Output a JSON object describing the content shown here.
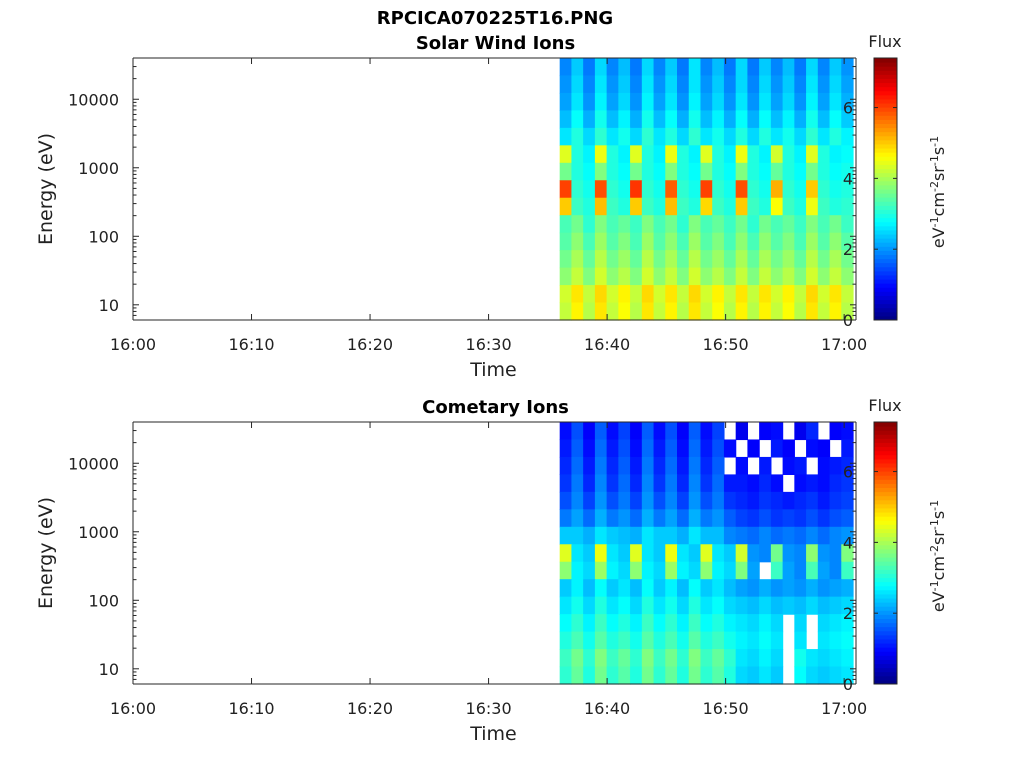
{
  "figure_title": "RPCICA070225T16.PNG",
  "chart_data": [
    {
      "type": "heatmap",
      "title": "Solar Wind Ions",
      "xlabel": "Time",
      "ylabel": "Energy (eV)",
      "x_ticks": [
        "16:00",
        "16:10",
        "16:20",
        "16:30",
        "16:40",
        "16:50",
        "17:00"
      ],
      "y_ticks": [
        "10",
        "100",
        "1000",
        "10000"
      ],
      "y_scale": "log",
      "ylim": [
        6,
        40000
      ],
      "xlim": [
        "16:00",
        "17:01"
      ],
      "data_start": "16:36",
      "colorbar_label": "Flux",
      "colorbar_unit": "eV-1cm-2sr-1s-1",
      "colorbar_ticks": [
        "0",
        "2",
        "4",
        "6"
      ],
      "clim": [
        0,
        7.4
      ],
      "colormap": "jet",
      "features": "Periodic vertical stripes (about 3.2 min period); peak flux near 400-500 eV reaching about 6; high flux about 4.5 at lowest energies",
      "time_labels": [
        "16:36",
        "16:37",
        "16:38",
        "16:39",
        "16:40",
        "16:41",
        "16:42",
        "16:43",
        "16:44",
        "16:45",
        "16:46",
        "16:47",
        "16:48",
        "16:49",
        "16:50",
        "16:51",
        "16:52",
        "16:53",
        "16:54",
        "16:55",
        "16:56",
        "16:57",
        "16:58",
        "16:59",
        "17:00"
      ],
      "energy_rows": [
        "30000",
        "20000",
        "10000",
        "5000",
        "2000",
        "1000",
        "600",
        "450",
        "350",
        "200",
        "100",
        "50",
        "25",
        "12",
        "8"
      ],
      "z": [
        [
          1.9,
          2.4,
          1.8,
          2.5,
          1.9,
          2.3,
          1.8,
          2.5,
          1.9,
          2.4,
          1.8,
          2.6,
          1.9,
          2.3,
          1.8,
          2.5,
          1.8,
          2.4,
          1.9,
          2.3,
          1.8,
          2.5,
          1.9,
          2.4,
          2.0
        ],
        [
          2.0,
          2.5,
          1.9,
          2.6,
          2.0,
          2.4,
          1.9,
          2.6,
          2.0,
          2.5,
          1.9,
          2.6,
          2.0,
          2.4,
          1.9,
          2.5,
          1.9,
          2.5,
          2.0,
          2.4,
          1.9,
          2.6,
          2.0,
          2.5,
          2.1
        ],
        [
          2.1,
          2.6,
          2.0,
          2.7,
          2.1,
          2.5,
          2.0,
          2.7,
          2.1,
          2.6,
          2.0,
          2.7,
          2.1,
          2.5,
          2.0,
          2.6,
          2.0,
          2.6,
          2.1,
          2.5,
          2.0,
          2.7,
          2.1,
          2.6,
          2.2
        ],
        [
          2.3,
          2.8,
          2.2,
          2.9,
          2.3,
          2.7,
          2.2,
          2.9,
          2.3,
          2.8,
          2.2,
          2.9,
          2.3,
          2.7,
          2.2,
          2.8,
          2.2,
          2.8,
          2.3,
          2.7,
          2.2,
          2.9,
          2.3,
          2.8,
          2.4
        ],
        [
          2.6,
          3.0,
          2.5,
          3.1,
          2.6,
          2.9,
          2.5,
          3.1,
          2.6,
          3.0,
          2.5,
          3.1,
          2.6,
          2.9,
          2.5,
          3.0,
          2.5,
          3.0,
          2.6,
          2.9,
          2.5,
          3.1,
          2.6,
          3.0,
          2.7
        ],
        [
          4.4,
          3.0,
          2.7,
          4.5,
          3.0,
          2.7,
          4.4,
          3.0,
          2.7,
          4.5,
          3.0,
          2.7,
          4.4,
          3.0,
          2.7,
          4.5,
          3.0,
          2.7,
          4.3,
          3.0,
          2.7,
          4.4,
          3.0,
          2.7,
          2.8
        ],
        [
          3.6,
          3.0,
          2.8,
          3.7,
          3.0,
          2.8,
          3.6,
          3.0,
          2.8,
          3.7,
          3.0,
          2.8,
          3.6,
          3.0,
          2.8,
          3.7,
          3.0,
          2.8,
          3.5,
          3.0,
          2.8,
          3.6,
          3.0,
          2.8,
          2.9
        ],
        [
          6.0,
          3.1,
          2.9,
          5.9,
          3.1,
          2.9,
          6.1,
          3.1,
          2.9,
          5.8,
          3.1,
          2.9,
          6.0,
          3.1,
          2.9,
          5.9,
          3.1,
          2.9,
          5.2,
          3.1,
          2.9,
          5.0,
          3.1,
          2.9,
          3.0
        ],
        [
          5.0,
          3.2,
          3.0,
          5.1,
          3.2,
          3.0,
          5.0,
          3.2,
          3.0,
          5.1,
          3.2,
          3.0,
          4.9,
          3.2,
          3.0,
          5.0,
          3.2,
          3.0,
          4.6,
          3.2,
          3.0,
          4.5,
          3.2,
          3.0,
          3.1
        ],
        [
          3.3,
          3.6,
          3.1,
          3.7,
          3.3,
          3.5,
          3.2,
          3.7,
          3.3,
          3.6,
          3.1,
          3.7,
          3.3,
          3.5,
          3.2,
          3.6,
          3.1,
          3.6,
          3.3,
          3.5,
          3.2,
          3.7,
          3.3,
          3.6,
          3.2
        ],
        [
          3.4,
          3.8,
          3.3,
          3.9,
          3.4,
          3.7,
          3.3,
          3.9,
          3.4,
          3.8,
          3.3,
          3.9,
          3.4,
          3.7,
          3.3,
          3.8,
          3.3,
          3.8,
          3.4,
          3.7,
          3.3,
          3.9,
          3.4,
          3.8,
          3.4
        ],
        [
          3.6,
          4.0,
          3.5,
          4.1,
          3.6,
          3.9,
          3.5,
          4.1,
          3.6,
          4.0,
          3.5,
          4.1,
          3.6,
          3.9,
          3.5,
          4.0,
          3.5,
          4.0,
          3.6,
          3.9,
          3.5,
          4.1,
          3.6,
          4.0,
          3.6
        ],
        [
          3.8,
          4.2,
          3.7,
          4.3,
          3.8,
          4.1,
          3.7,
          4.3,
          3.8,
          4.2,
          3.7,
          4.3,
          3.8,
          4.1,
          3.7,
          4.2,
          3.7,
          4.2,
          3.8,
          4.1,
          3.7,
          4.3,
          3.8,
          4.2,
          3.8
        ],
        [
          4.3,
          4.8,
          4.2,
          4.9,
          4.3,
          4.7,
          4.2,
          4.9,
          4.3,
          4.8,
          4.2,
          4.9,
          4.3,
          4.7,
          4.2,
          4.8,
          4.2,
          4.8,
          4.3,
          4.7,
          4.2,
          4.9,
          4.3,
          4.8,
          4.2
        ],
        [
          4.2,
          4.7,
          4.1,
          4.8,
          4.2,
          4.6,
          4.1,
          4.8,
          4.2,
          4.7,
          4.1,
          4.8,
          4.2,
          4.6,
          4.1,
          4.7,
          4.1,
          4.7,
          4.2,
          4.6,
          4.1,
          4.8,
          4.2,
          4.7,
          4.1
        ]
      ]
    },
    {
      "type": "heatmap",
      "title": "Cometary Ions",
      "xlabel": "Time",
      "ylabel": "Energy (eV)",
      "x_ticks": [
        "16:00",
        "16:10",
        "16:20",
        "16:30",
        "16:40",
        "16:50",
        "17:00"
      ],
      "y_ticks": [
        "10",
        "100",
        "1000",
        "10000"
      ],
      "y_scale": "log",
      "ylim": [
        6,
        40000
      ],
      "xlim": [
        "16:00",
        "17:01"
      ],
      "data_start": "16:36",
      "colorbar_label": "Flux",
      "colorbar_unit": "eV-1cm-2sr-1s-1",
      "colorbar_ticks": [
        "0",
        "2",
        "4",
        "6"
      ],
      "clim": [
        0,
        7.4
      ],
      "colormap": "jet",
      "features": "Low flux (about 1) at high energies with gaps (white, no data) after 16:52; periodic peaks near 400-500 eV reaching about 4.5; moderate flux 2.5-3.8 at low energies",
      "time_labels": [
        "16:36",
        "16:37",
        "16:38",
        "16:39",
        "16:40",
        "16:41",
        "16:42",
        "16:43",
        "16:44",
        "16:45",
        "16:46",
        "16:47",
        "16:48",
        "16:49",
        "16:50",
        "16:51",
        "16:52",
        "16:53",
        "16:54",
        "16:55",
        "16:56",
        "16:57",
        "16:58",
        "16:59",
        "17:00"
      ],
      "energy_rows": [
        "30000",
        "20000",
        "10000",
        "5000",
        "2000",
        "1000",
        "600",
        "450",
        "350",
        "200",
        "100",
        "50",
        "25",
        "12",
        "8"
      ],
      "z": [
        [
          1.0,
          1.5,
          0.9,
          1.6,
          1.0,
          1.4,
          0.9,
          1.6,
          1.0,
          1.5,
          0.9,
          1.6,
          1.0,
          1.4,
          null,
          0.8,
          null,
          0.9,
          1.0,
          null,
          0.8,
          1.2,
          null,
          0.9,
          1.0
        ],
        [
          1.1,
          1.6,
          1.0,
          1.7,
          1.1,
          1.5,
          1.0,
          1.7,
          1.1,
          1.6,
          1.0,
          1.7,
          1.1,
          1.5,
          1.0,
          null,
          0.9,
          null,
          1.1,
          0.9,
          null,
          1.0,
          0.9,
          null,
          1.1
        ],
        [
          1.2,
          1.7,
          1.1,
          1.8,
          1.2,
          1.6,
          1.1,
          1.8,
          1.2,
          1.7,
          1.1,
          1.8,
          1.2,
          1.6,
          null,
          1.0,
          null,
          1.1,
          null,
          1.0,
          1.1,
          null,
          1.0,
          1.1,
          1.2
        ],
        [
          1.3,
          1.8,
          1.2,
          1.9,
          1.3,
          1.7,
          1.2,
          1.9,
          1.3,
          1.8,
          1.2,
          1.9,
          1.3,
          1.7,
          1.1,
          1.1,
          1.0,
          1.2,
          1.0,
          null,
          1.0,
          1.1,
          1.0,
          1.2,
          1.3
        ],
        [
          1.5,
          1.9,
          1.4,
          2.0,
          1.5,
          1.8,
          1.4,
          2.0,
          1.5,
          1.9,
          1.4,
          2.0,
          1.5,
          1.8,
          1.3,
          1.2,
          1.1,
          1.3,
          1.2,
          1.1,
          1.2,
          1.3,
          1.1,
          1.3,
          1.4
        ],
        [
          1.8,
          2.1,
          1.7,
          2.2,
          1.8,
          2.0,
          1.7,
          2.2,
          1.8,
          2.1,
          1.7,
          2.2,
          1.8,
          2.0,
          1.6,
          1.4,
          1.3,
          1.5,
          1.3,
          1.4,
          1.3,
          1.5,
          1.3,
          1.5,
          1.6
        ],
        [
          2.4,
          2.4,
          2.2,
          2.6,
          2.4,
          2.3,
          2.2,
          2.6,
          2.4,
          2.4,
          2.2,
          2.6,
          2.3,
          2.3,
          1.9,
          1.8,
          1.7,
          1.9,
          1.7,
          1.8,
          1.7,
          1.9,
          1.7,
          1.9,
          2.0
        ],
        [
          4.4,
          2.6,
          2.4,
          4.5,
          2.6,
          2.4,
          4.4,
          2.6,
          2.4,
          4.5,
          2.6,
          2.4,
          4.4,
          2.6,
          2.4,
          4.3,
          2.0,
          1.9,
          3.6,
          2.0,
          1.9,
          3.8,
          2.0,
          1.9,
          3.7
        ],
        [
          3.8,
          2.7,
          2.5,
          3.9,
          2.7,
          2.5,
          3.8,
          2.7,
          2.5,
          3.9,
          2.7,
          2.5,
          3.8,
          2.7,
          2.5,
          3.7,
          2.1,
          null,
          3.2,
          2.1,
          1.9,
          3.3,
          2.1,
          1.9,
          3.2
        ],
        [
          2.4,
          2.7,
          2.3,
          2.8,
          2.4,
          2.6,
          2.3,
          2.8,
          2.4,
          2.7,
          2.3,
          2.8,
          2.4,
          2.6,
          2.3,
          2.1,
          2.0,
          2.2,
          2.0,
          2.1,
          2.0,
          2.2,
          2.0,
          2.1,
          2.2
        ],
        [
          2.6,
          2.9,
          2.5,
          3.0,
          2.6,
          2.8,
          2.5,
          3.0,
          2.6,
          2.9,
          2.5,
          3.0,
          2.6,
          2.8,
          2.5,
          2.4,
          2.3,
          2.5,
          2.3,
          2.4,
          2.3,
          2.5,
          2.3,
          2.4,
          2.5
        ],
        [
          2.8,
          3.1,
          2.7,
          3.2,
          2.8,
          3.0,
          2.7,
          3.2,
          2.8,
          3.1,
          2.7,
          3.2,
          2.8,
          3.0,
          2.7,
          2.6,
          2.5,
          2.7,
          2.5,
          null,
          2.5,
          null,
          2.5,
          2.6,
          2.7
        ],
        [
          3.0,
          3.3,
          2.9,
          3.4,
          3.0,
          3.2,
          2.9,
          3.4,
          3.0,
          3.3,
          2.9,
          3.4,
          3.0,
          3.2,
          2.9,
          2.7,
          2.6,
          2.8,
          2.6,
          null,
          2.6,
          null,
          2.6,
          2.7,
          2.8
        ],
        [
          3.2,
          3.6,
          3.1,
          3.7,
          3.2,
          3.5,
          3.1,
          3.7,
          3.2,
          3.6,
          3.1,
          3.7,
          3.2,
          3.5,
          3.1,
          2.6,
          2.5,
          2.7,
          2.5,
          null,
          2.9,
          2.6,
          2.5,
          2.6,
          2.7
        ],
        [
          3.1,
          3.5,
          3.0,
          3.6,
          3.1,
          3.4,
          3.0,
          3.6,
          3.1,
          3.5,
          3.0,
          3.6,
          3.1,
          3.4,
          3.0,
          2.5,
          2.4,
          2.6,
          2.4,
          null,
          2.8,
          2.5,
          2.4,
          2.5,
          2.6
        ]
      ]
    }
  ]
}
